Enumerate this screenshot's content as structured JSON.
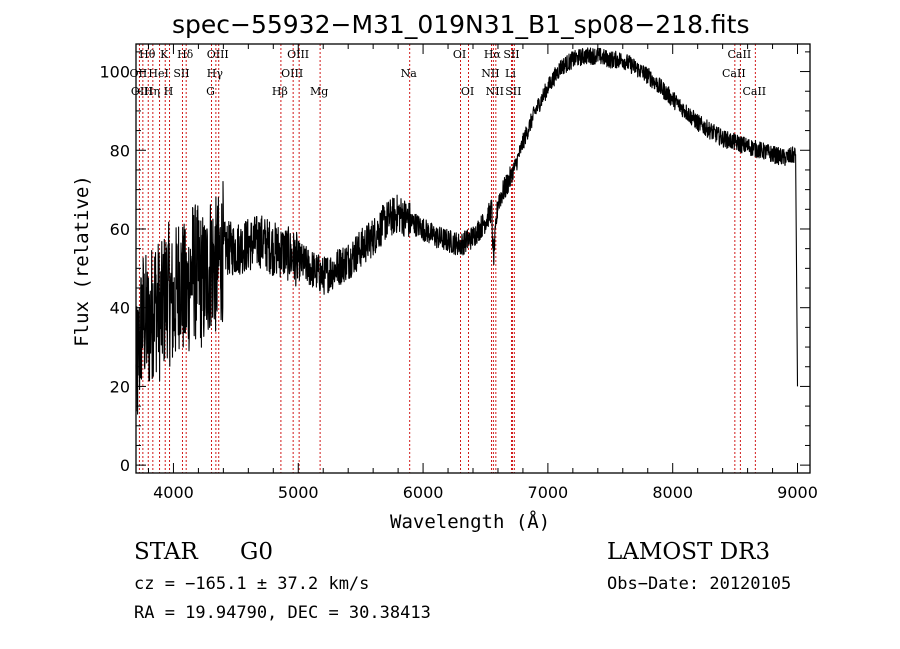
{
  "chart_data": {
    "type": "line",
    "title": "spec−55932−M31_019N31_B1_sp08−218.fits",
    "xlabel": "Wavelength (Å)",
    "ylabel": "Flux (relative)",
    "xlim": [
      3700,
      9100
    ],
    "ylim": [
      -2,
      107
    ],
    "x_ticks": [
      4000,
      5000,
      6000,
      7000,
      8000,
      9000
    ],
    "y_ticks": [
      0,
      20,
      40,
      60,
      80,
      100
    ],
    "grid": false,
    "legend": "none",
    "series": [
      {
        "name": "flux",
        "x": [
          3700,
          3750,
          3800,
          3850,
          3900,
          3950,
          4000,
          4050,
          4100,
          4150,
          4200,
          4250,
          4300,
          4350,
          4400,
          4500,
          4600,
          4700,
          4800,
          4900,
          5000,
          5100,
          5200,
          5300,
          5400,
          5500,
          5600,
          5700,
          5750,
          5800,
          5900,
          6000,
          6100,
          6200,
          6300,
          6400,
          6500,
          6550,
          6563,
          6600,
          6650,
          6700,
          6750,
          6800,
          6900,
          7000,
          7100,
          7200,
          7300,
          7400,
          7500,
          7600,
          7700,
          7800,
          7900,
          8000,
          8100,
          8200,
          8300,
          8400,
          8500,
          8600,
          8700,
          8800,
          8900,
          8990,
          9000
        ],
        "y": [
          20,
          38,
          35,
          42,
          38,
          45,
          40,
          48,
          42,
          50,
          48,
          46,
          52,
          50,
          55,
          55,
          56,
          57,
          55,
          54,
          52,
          50,
          48,
          50,
          52,
          55,
          58,
          62,
          63,
          64,
          62,
          60,
          58,
          57,
          56,
          58,
          62,
          65,
          52,
          67,
          70,
          73,
          77,
          82,
          90,
          96,
          101,
          103,
          104,
          104,
          103,
          103,
          101,
          99,
          96,
          93,
          90,
          87,
          85,
          83,
          82,
          81,
          80,
          79,
          78,
          79,
          20
        ]
      }
    ],
    "lines": [
      {
        "label": "Hθ",
        "wl": 3798,
        "row": 0
      },
      {
        "label": "K",
        "wl": 3934,
        "row": 0
      },
      {
        "label": "Hδ",
        "wl": 4102,
        "row": 0
      },
      {
        "label": "OIII",
        "wl": 4363,
        "row": 0
      },
      {
        "label": "OIII",
        "wl": 5007,
        "row": 0
      },
      {
        "label": "OI",
        "wl": 6300,
        "row": 0
      },
      {
        "label": "Hα",
        "wl": 6563,
        "row": 0
      },
      {
        "label": "SII",
        "wl": 6716,
        "row": 0
      },
      {
        "label": "CaII",
        "wl": 8542,
        "row": 0
      },
      {
        "label": "OII",
        "wl": 3727,
        "row": 1
      },
      {
        "label": "HeI",
        "wl": 3889,
        "row": 1
      },
      {
        "label": "SII",
        "wl": 4072,
        "row": 1
      },
      {
        "label": "Hγ",
        "wl": 4340,
        "row": 1
      },
      {
        "label": "OIII",
        "wl": 4959,
        "row": 1
      },
      {
        "label": "Na",
        "wl": 5893,
        "row": 1
      },
      {
        "label": "NII",
        "wl": 6548,
        "row": 1
      },
      {
        "label": "Li",
        "wl": 6708,
        "row": 1
      },
      {
        "label": "CaII",
        "wl": 8498,
        "row": 1
      },
      {
        "label": "OIII",
        "wl": 3755,
        "row": 2
      },
      {
        "label": "Hη",
        "wl": 3835,
        "row": 2
      },
      {
        "label": "H",
        "wl": 3969,
        "row": 2
      },
      {
        "label": "G",
        "wl": 4305,
        "row": 2
      },
      {
        "label": "Hβ",
        "wl": 4861,
        "row": 2
      },
      {
        "label": "Mg",
        "wl": 5175,
        "row": 2
      },
      {
        "label": "OI",
        "wl": 6364,
        "row": 2
      },
      {
        "label": "NII",
        "wl": 6583,
        "row": 2
      },
      {
        "label": "SII",
        "wl": 6731,
        "row": 2
      },
      {
        "label": "CaII",
        "wl": 8662,
        "row": 2
      }
    ]
  },
  "info": {
    "object_class": "STAR",
    "subclass": "G0",
    "survey": "LAMOST DR3",
    "cz": "cz = −165.1 ± 37.2 km/s",
    "obs_date": "Obs−Date: 20120105",
    "coords": "RA =  19.94790, DEC =  30.38413"
  }
}
